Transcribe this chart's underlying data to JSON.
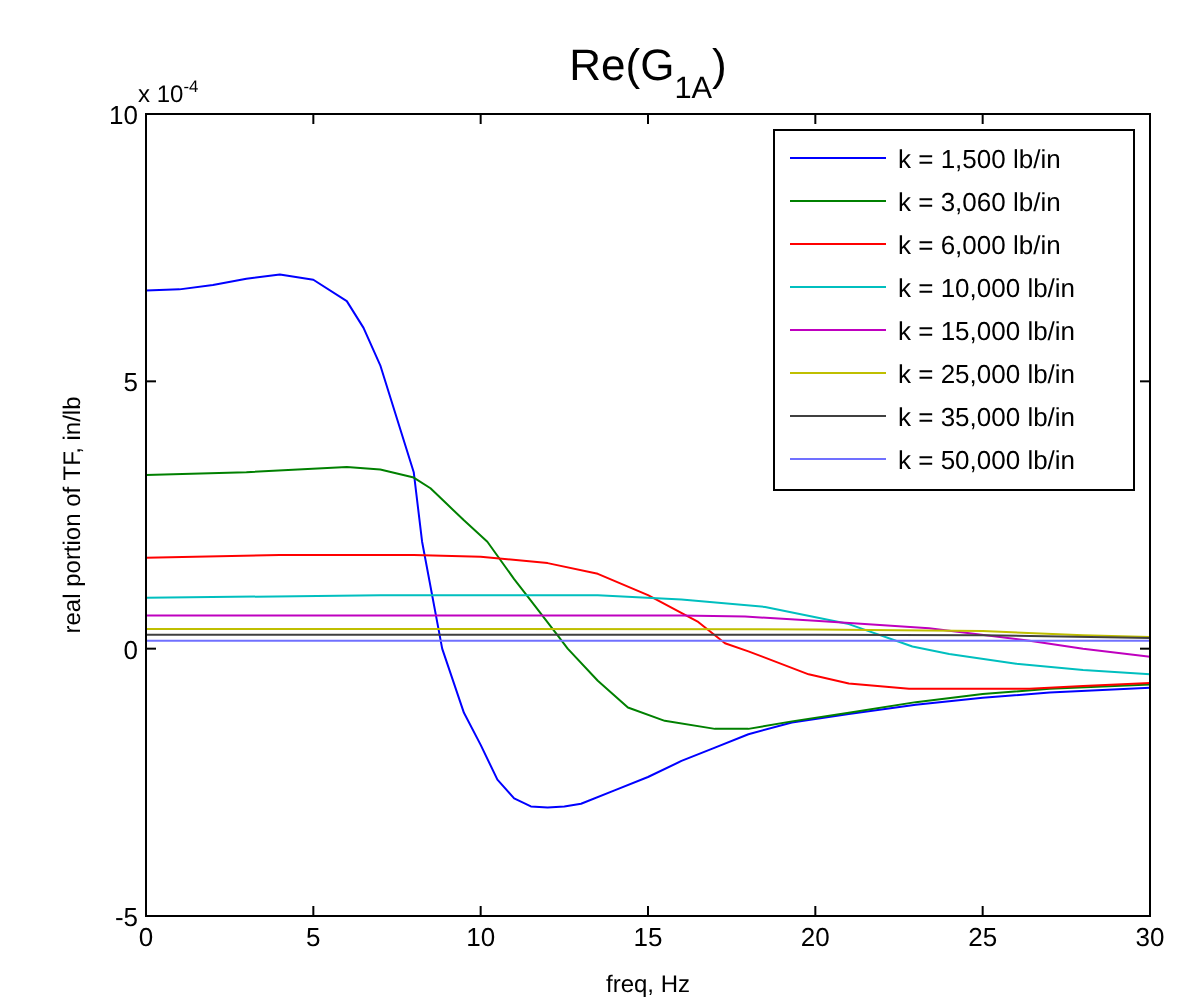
{
  "chart_data": {
    "type": "line",
    "title": "Re(G$_{1A}$)",
    "xlabel": "freq, Hz",
    "ylabel": "real portion of TF, in/lb",
    "annotations": [
      "x 10$^{-4}$"
    ],
    "xlim": [
      0,
      30
    ],
    "xticks": [
      0,
      5,
      10,
      15,
      20,
      25,
      30
    ],
    "ylim": [
      -5,
      10
    ],
    "yticks": [
      -5,
      0,
      5,
      10
    ],
    "grid": false,
    "legend": "top right",
    "marker": "none",
    "line_style": "solid",
    "series": [
      {
        "name": "k = 1,500 lb/in",
        "color": "#0000ff",
        "x": [
          0,
          1,
          2,
          3,
          4,
          5,
          6,
          6.5,
          7,
          7.5,
          8,
          8.25,
          8.85,
          9.5,
          10,
          10.5,
          11,
          11.5,
          12,
          12.5,
          13,
          14,
          15,
          16,
          17,
          18,
          19.3,
          21,
          23,
          25,
          27,
          30
        ],
        "values": [
          6.7,
          6.72,
          6.8,
          6.92,
          7.0,
          6.9,
          6.5,
          6.0,
          5.3,
          4.3,
          3.3,
          2.0,
          0,
          -1.2,
          -1.8,
          -2.45,
          -2.8,
          -2.95,
          -2.97,
          -2.95,
          -2.9,
          -2.65,
          -2.4,
          -2.1,
          -1.85,
          -1.6,
          -1.38,
          -1.22,
          -1.05,
          -0.92,
          -0.82,
          -0.73
        ]
      },
      {
        "name": "k = 3,060 lb/in",
        "color": "#008000",
        "x": [
          0,
          3,
          6,
          7,
          8,
          8.5,
          9,
          9.5,
          10.2,
          11,
          11.5,
          12.3,
          12.6,
          13.5,
          14.4,
          15.5,
          17,
          18,
          19.3,
          21,
          23,
          25,
          27,
          30
        ],
        "values": [
          3.25,
          3.3,
          3.4,
          3.35,
          3.2,
          3.0,
          2.7,
          2.4,
          2.0,
          1.3,
          0.9,
          0.25,
          0,
          -0.6,
          -1.1,
          -1.35,
          -1.5,
          -1.5,
          -1.36,
          -1.2,
          -1.0,
          -0.85,
          -0.75,
          -0.67
        ]
      },
      {
        "name": "k = 6,000 lb/in",
        "color": "#ff0000",
        "x": [
          0,
          4,
          8,
          10,
          12,
          13.5,
          15,
          16.5,
          17.3,
          18,
          19.8,
          21,
          22.8,
          26.4,
          28,
          30
        ],
        "values": [
          1.7,
          1.75,
          1.75,
          1.72,
          1.6,
          1.4,
          1.0,
          0.5,
          0.1,
          -0.05,
          -0.48,
          -0.65,
          -0.75,
          -0.75,
          -0.7,
          -0.64
        ]
      },
      {
        "name": "k = 10,000 lb/in",
        "color": "#00bfbf",
        "x": [
          0,
          7,
          13.5,
          16,
          18.5,
          21,
          22.9,
          24,
          26,
          28,
          30
        ],
        "values": [
          0.95,
          1.0,
          1.0,
          0.92,
          0.78,
          0.46,
          0.04,
          -0.1,
          -0.28,
          -0.4,
          -0.48
        ]
      },
      {
        "name": "k = 15,000 lb/in",
        "color": "#bf00bf",
        "x": [
          0,
          10,
          16,
          17.9,
          20,
          23.4,
          26.4,
          28,
          30
        ],
        "values": [
          0.62,
          0.62,
          0.62,
          0.6,
          0.52,
          0.38,
          0.15,
          0,
          -0.15
        ]
      },
      {
        "name": "k = 25,000 lb/in",
        "color": "#bfbf00",
        "x": [
          0,
          10,
          20,
          25,
          28,
          30
        ],
        "values": [
          0.37,
          0.37,
          0.36,
          0.33,
          0.25,
          0.22
        ]
      },
      {
        "name": "k = 35,000 lb/in",
        "color": "#404040",
        "x": [
          0,
          10,
          20,
          25,
          30
        ],
        "values": [
          0.26,
          0.26,
          0.26,
          0.25,
          0.2
        ]
      },
      {
        "name": "k = 50,000 lb/in",
        "color": "#7070ff",
        "x": [
          0,
          10,
          20,
          30
        ],
        "values": [
          0.15,
          0.15,
          0.15,
          0.15
        ]
      }
    ]
  }
}
